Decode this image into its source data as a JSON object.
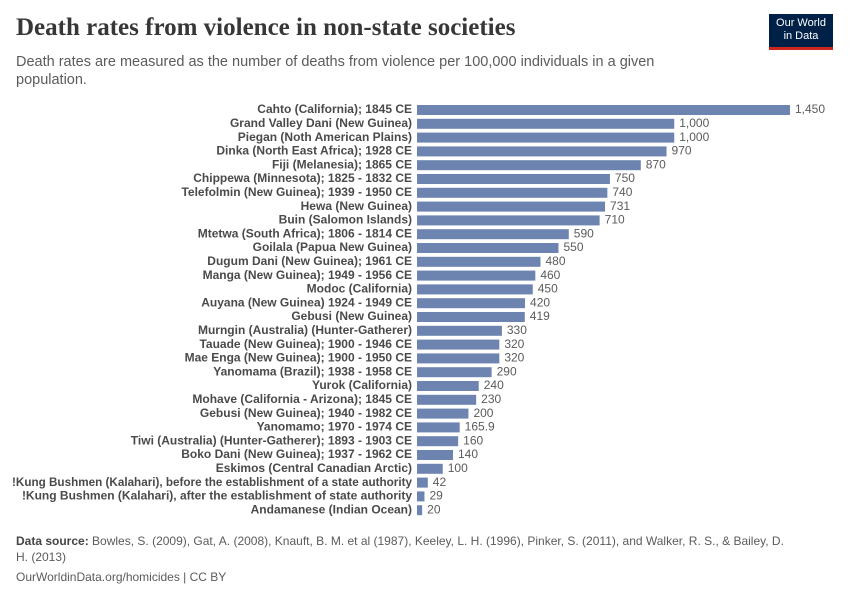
{
  "chart_data": {
    "type": "hbar",
    "title": "Death rates from violence in non-state societies",
    "subtitle": "Death rates are measured as the number of deaths from violence per 100,000 individuals in a given population.",
    "logo": {
      "line1": "Our World",
      "line2": "in Data"
    },
    "source_label": "Data source:",
    "source": "Bowles, S. (2009), Gat, A. (2008), Knauft, B. M. et al (1987), Keeley, L. H. (1996), Pinker, S. (2011), and Walker, R. S., & Bailey, D. H. (2013)",
    "footer": "OurWorldinData.org/homicides | CC BY",
    "color": "#6d83b0",
    "categories": [
      "Cahto (California); 1845 CE",
      "Grand Valley Dani (New Guinea)",
      "Piegan (Noth American Plains)",
      "Dinka (North East Africa); 1928 CE",
      "Fiji (Melanesia); 1865 CE",
      "Chippewa (Minnesota); 1825 - 1832 CE",
      "Telefolmin (New Guinea); 1939 - 1950 CE",
      "Hewa (New Guinea)",
      "Buin (Salomon Islands)",
      "Mtetwa (South Africa); 1806 - 1814 CE",
      "Goilala (Papua New Guinea)",
      "Dugum Dani (New Guinea); 1961 CE",
      "Manga (New Guinea); 1949 - 1956 CE",
      "Modoc (California)",
      "Auyana (New Guinea) 1924 - 1949 CE",
      "Gebusi (New Guinea)",
      "Murngin (Australia) (Hunter-Gatherer)",
      "Tauade (New Guinea); 1900 - 1946 CE",
      "Mae Enga (New Guinea); 1900 - 1950 CE",
      "Yanomama (Brazil); 1938 - 1958 CE",
      "Yurok (California)",
      "Mohave (California - Arizona); 1845 CE",
      "Gebusi (New Guinea); 1940 - 1982 CE",
      "Yanomamo; 1970 - 1974 CE",
      "Tiwi (Australia) (Hunter-Gatherer); 1893 - 1903 CE",
      "Boko Dani (New Guinea); 1937 - 1962 CE",
      "Eskimos (Central Canadian Arctic)",
      "!Kung Bushmen (Kalahari), before the establishment of a state authority",
      "!Kung Bushmen (Kalahari), after the establishment of state authority",
      "Andamanese (Indian Ocean)"
    ],
    "values": [
      1450,
      1000,
      1000,
      970,
      870,
      750,
      740,
      731,
      710,
      590,
      550,
      480,
      460,
      450,
      420,
      419,
      330,
      320,
      320,
      290,
      240,
      230,
      200,
      165.9,
      160,
      140,
      100,
      42,
      29,
      20
    ],
    "value_labels": [
      "1,450",
      "1,000",
      "1,000",
      "970",
      "870",
      "750",
      "740",
      "731",
      "710",
      "590",
      "550",
      "480",
      "460",
      "450",
      "420",
      "419",
      "330",
      "320",
      "320",
      "290",
      "240",
      "230",
      "200",
      "165.9",
      "160",
      "140",
      "100",
      "42",
      "29",
      "20"
    ]
  }
}
